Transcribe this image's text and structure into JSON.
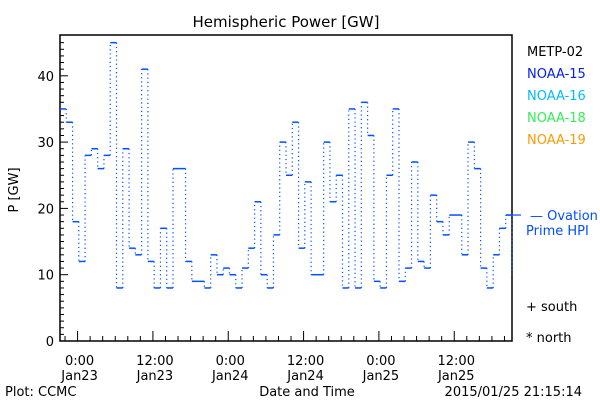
{
  "chart_data": {
    "type": "line",
    "title": "Hemispheric Power [GW]",
    "xlabel": "Date and Time",
    "ylabel": "P [GW]",
    "ylim": [
      0,
      46
    ],
    "yticks": [
      0,
      10,
      20,
      30,
      40
    ],
    "xlim_hours_from_jan23_0000": [
      -2.8,
      69.2
    ],
    "xticks": [
      {
        "hours": 0,
        "time": "0:00",
        "date": "Jan23"
      },
      {
        "hours": 12,
        "time": "12:00",
        "date": "Jan23"
      },
      {
        "hours": 24,
        "time": "0:00",
        "date": "Jan24"
      },
      {
        "hours": 36,
        "time": "12:00",
        "date": "Jan24"
      },
      {
        "hours": 48,
        "time": "0:00",
        "date": "Jan25"
      },
      {
        "hours": 60,
        "time": "12:00",
        "date": "Jan25"
      }
    ],
    "grid": false,
    "series": [
      {
        "name": "Ovation Prime HPI",
        "color": "#0050ff",
        "style": "step",
        "start_hour": -2.8,
        "step_hours": 1,
        "values": [
          35,
          33,
          18,
          12,
          28,
          29,
          26,
          28,
          45,
          8,
          29,
          14,
          13,
          41,
          12,
          8,
          17,
          8,
          26,
          26,
          12,
          9,
          9,
          8,
          13,
          10,
          11,
          10,
          8,
          11,
          14,
          21,
          10,
          8,
          16,
          30,
          25,
          33,
          14,
          24,
          10,
          10,
          30,
          21,
          25,
          8,
          35,
          8,
          36,
          31,
          9,
          8,
          25,
          35,
          9,
          11,
          27,
          12,
          11,
          22,
          18,
          16,
          19,
          19,
          13,
          30,
          26,
          11,
          8,
          13,
          17,
          19
        ]
      }
    ],
    "legend": {
      "placement": "right",
      "satellites": [
        {
          "name": "METP-02",
          "color": "#000000"
        },
        {
          "name": "NOAA-15",
          "color": "#0022ee"
        },
        {
          "name": "NOAA-16",
          "color": "#00bbff"
        },
        {
          "name": "NOAA-18",
          "color": "#33ee55"
        },
        {
          "name": "NOAA-19",
          "color": "#ff9900"
        }
      ],
      "ovation_line1": "— Ovation",
      "ovation_line2": "Prime HPI",
      "south": "+ south",
      "north": "* north"
    }
  },
  "footer": {
    "credit": "Plot: CCMC",
    "timestamp": "2015/01/25 21:15:14"
  }
}
